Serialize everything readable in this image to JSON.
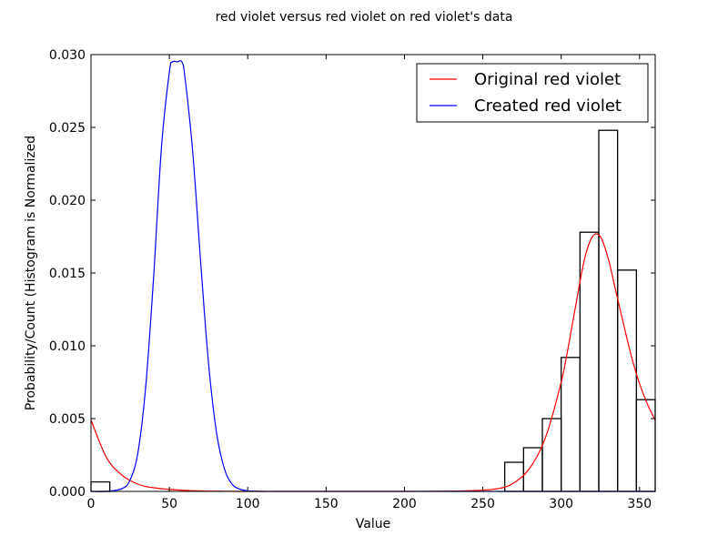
{
  "chart_data": {
    "type": "histogram_with_density",
    "title": "red violet versus red violet on red violet's data",
    "xlabel": "Value",
    "ylabel": "Probability/Count (Histogram is Normalized",
    "xlim": [
      0,
      360
    ],
    "ylim": [
      0,
      0.03
    ],
    "xticks": [
      0,
      50,
      100,
      150,
      200,
      250,
      300,
      350
    ],
    "xtick_labels": [
      "0",
      "50",
      "100",
      "150",
      "200",
      "250",
      "300",
      "350"
    ],
    "yticks": [
      0,
      0.005,
      0.01,
      0.015,
      0.02,
      0.025,
      0.03
    ],
    "ytick_labels": [
      "0.000",
      "0.005",
      "0.010",
      "0.015",
      "0.020",
      "0.025",
      "0.030"
    ],
    "legend_position": "top-right",
    "grid": false,
    "histogram": {
      "bin_edges": [
        0,
        12,
        24,
        36,
        48,
        60,
        72,
        84,
        96,
        108,
        120,
        132,
        144,
        156,
        168,
        180,
        192,
        204,
        216,
        228,
        240,
        252,
        264,
        276,
        288,
        300,
        312,
        324,
        336,
        348,
        360
      ],
      "density": [
        0.00065,
        0,
        0,
        0,
        0,
        0,
        0,
        0,
        0,
        0,
        0,
        0,
        0,
        0,
        0,
        0,
        0,
        0,
        0,
        0,
        0,
        0,
        0.002,
        0.003,
        0.005,
        0.0092,
        0.0178,
        0.0248,
        0.0152,
        0.0063
      ],
      "edgecolor": "#000000"
    },
    "series": [
      {
        "name": "Original red violet",
        "color": "#ff0000",
        "x": [
          0,
          10,
          20,
          30,
          40,
          60,
          80,
          100,
          150,
          200,
          240,
          260,
          270,
          280,
          290,
          300,
          305,
          310,
          315,
          320,
          325,
          330,
          335,
          340,
          345,
          350,
          355,
          360
        ],
        "y": [
          0.0049,
          0.0023,
          0.0011,
          0.0005,
          0.00025,
          7e-05,
          2e-05,
          0,
          0,
          0,
          4e-05,
          0.0002,
          0.0006,
          0.0016,
          0.0037,
          0.0075,
          0.0102,
          0.0132,
          0.016,
          0.0175,
          0.0175,
          0.016,
          0.0137,
          0.0114,
          0.0092,
          0.0074,
          0.006,
          0.0049
        ]
      },
      {
        "name": "Created red violet",
        "color": "#0000ff",
        "x": [
          0,
          10,
          20,
          25,
          30,
          35,
          40,
          45,
          50,
          52,
          55,
          58,
          60,
          65,
          70,
          75,
          80,
          85,
          90,
          95,
          100,
          110,
          120,
          130,
          150,
          360
        ],
        "y": [
          0,
          0,
          0.0002,
          0.0008,
          0.0027,
          0.0073,
          0.0148,
          0.0237,
          0.0288,
          0.0295,
          0.0295,
          0.0295,
          0.0284,
          0.0232,
          0.0157,
          0.0088,
          0.0041,
          0.0016,
          0.0005,
          0.00015,
          4e-05,
          0,
          0,
          0,
          0,
          0
        ]
      }
    ]
  }
}
